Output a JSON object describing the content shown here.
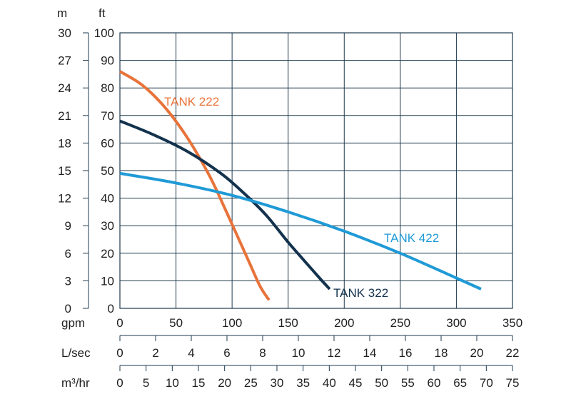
{
  "chart_data": {
    "type": "line",
    "title": "",
    "grid": true,
    "x_axes": [
      {
        "label": "gpm",
        "min": 0,
        "max": 350,
        "ticks": [
          "0",
          "50",
          "100",
          "150",
          "200",
          "250",
          "300",
          "350"
        ]
      },
      {
        "label": "L/sec",
        "min": 0,
        "max": 22,
        "ticks": [
          "0",
          "2",
          "4",
          "6",
          "8",
          "10",
          "12",
          "14",
          "16",
          "18",
          "20",
          "22"
        ]
      },
      {
        "label": "m³/hr",
        "min": 0,
        "max": 75,
        "ticks": [
          "0",
          "5",
          "10",
          "15",
          "20",
          "25",
          "30",
          "35",
          "40",
          "45",
          "50",
          "55",
          "60",
          "65",
          "70",
          "75"
        ]
      }
    ],
    "y_axes": [
      {
        "label": "m",
        "min": 0,
        "max": 30,
        "ticks": [
          "0",
          "3",
          "6",
          "9",
          "12",
          "15",
          "18",
          "21",
          "24",
          "27",
          "30"
        ]
      },
      {
        "label": "ft",
        "min": 0,
        "max": 100,
        "ticks": [
          "0",
          "10",
          "20",
          "30",
          "40",
          "50",
          "60",
          "70",
          "80",
          "90",
          "100"
        ]
      }
    ],
    "series": [
      {
        "name": "TANK 222",
        "color": "#e8733a",
        "x": [
          0,
          20,
          40,
          60,
          80,
          95,
          105,
          115,
          125,
          133
        ],
        "y": [
          86,
          81,
          73,
          62,
          48,
          35,
          26,
          17,
          8,
          3
        ]
      },
      {
        "name": "TANK 322",
        "color": "#13324d",
        "x": [
          0,
          30,
          60,
          90,
          110,
          130,
          150,
          165,
          178,
          187
        ],
        "y": [
          68,
          63,
          57,
          49,
          42,
          34,
          24,
          17,
          11,
          7
        ]
      },
      {
        "name": "TANK 422",
        "color": "#1f9ad6",
        "x": [
          0,
          50,
          100,
          150,
          200,
          250,
          300,
          322
        ],
        "y": [
          49,
          45.5,
          41,
          35,
          28,
          20,
          11,
          7
        ]
      }
    ]
  }
}
